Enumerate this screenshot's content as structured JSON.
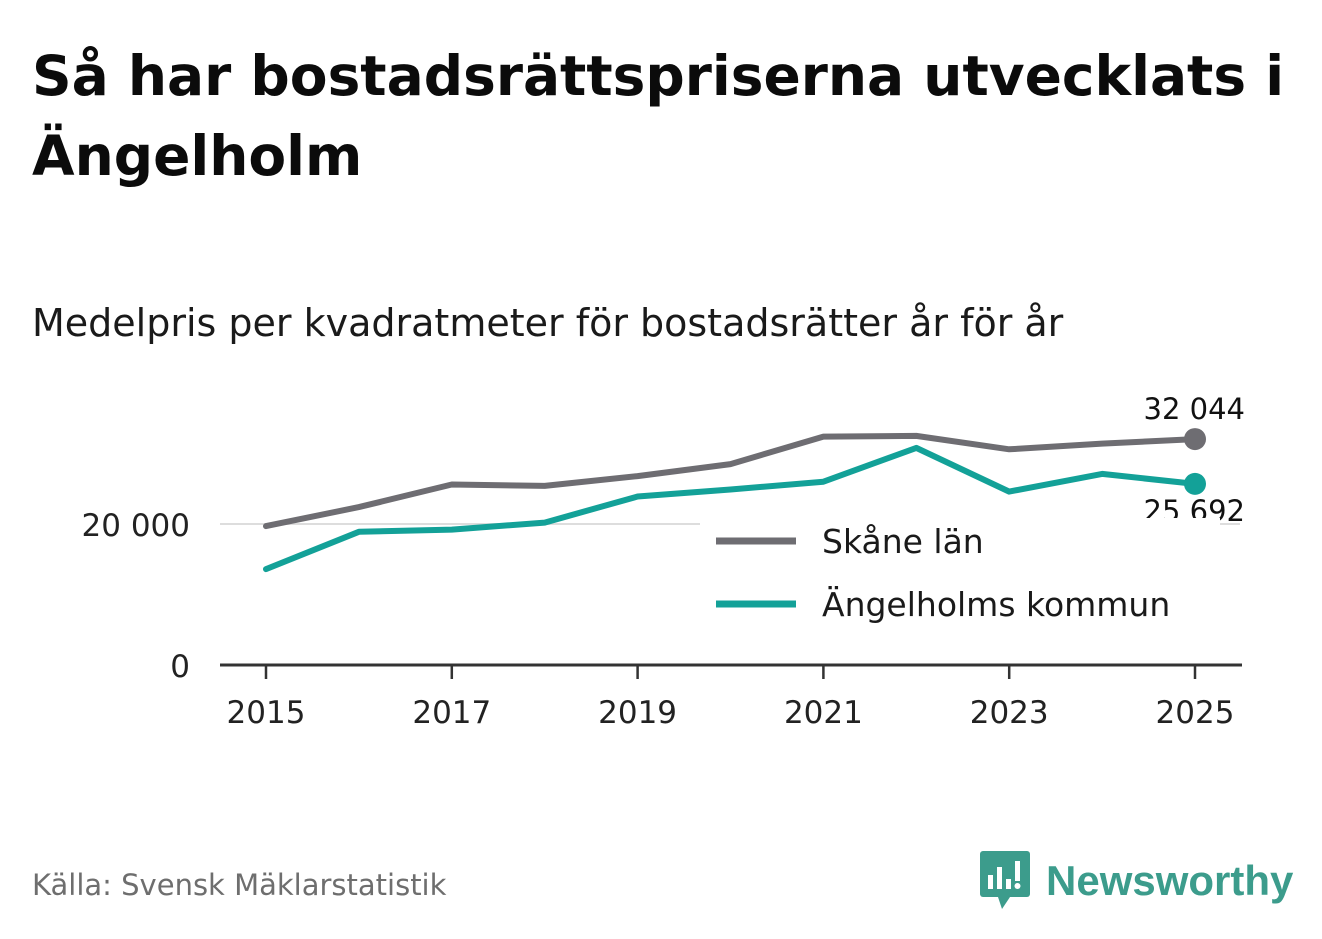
{
  "title": "Så har bostadsrättspriserna utvecklats i Ängelholm",
  "subtitle": "Medelpris per kvadratmeter för bostadsrätter år för år",
  "source": "Källa: Svensk Mäklarstatistik",
  "brand": "Newsworthy",
  "colors": {
    "skane": "#6e6d72",
    "angelholm": "#13a198",
    "grid": "#dddddd",
    "axis": "#333333"
  },
  "chart_data": {
    "type": "line",
    "x": [
      2015,
      2016,
      2017,
      2018,
      2019,
      2020,
      2021,
      2022,
      2023,
      2024,
      2025
    ],
    "x_ticks": [
      "2015",
      "2017",
      "2019",
      "2021",
      "2023",
      "2025"
    ],
    "y_ticks": [
      "0",
      "20 000"
    ],
    "y_tick_values": [
      0,
      20000
    ],
    "ylim": [
      0,
      34000
    ],
    "series": [
      {
        "name": "Skåne län",
        "values": [
          19700,
          22400,
          25600,
          25400,
          26800,
          28500,
          32400,
          32500,
          30600,
          31400,
          32044
        ],
        "end_label": "32 044"
      },
      {
        "name": "Ängelholms kommun",
        "values": [
          13600,
          18900,
          19200,
          20200,
          23900,
          24900,
          26000,
          30800,
          24600,
          27100,
          25692
        ],
        "end_label": "25 692"
      }
    ],
    "legend": [
      "Skåne län",
      "Ängelholms kommun"
    ]
  }
}
